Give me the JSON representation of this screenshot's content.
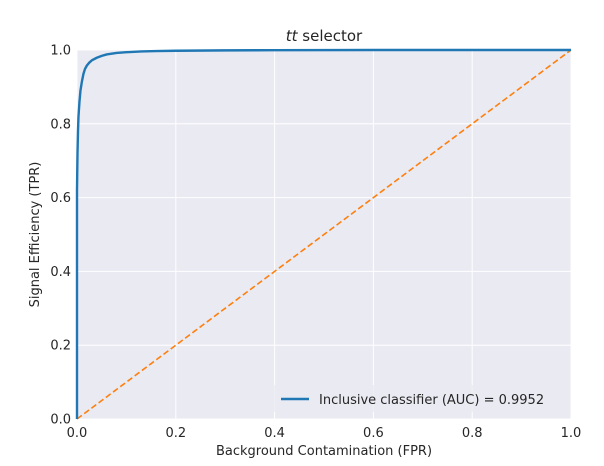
{
  "chart_data": {
    "type": "line",
    "title_italic": "tt",
    "title_rest": " selector",
    "xlabel": "Background Contamination (FPR)",
    "ylabel": "Signal Efficiency (TPR)",
    "xlim": [
      0.0,
      1.0
    ],
    "ylim": [
      0.0,
      1.0
    ],
    "xticks": [
      "0.0",
      "0.2",
      "0.4",
      "0.6",
      "0.8",
      "1.0"
    ],
    "yticks": [
      "0.0",
      "0.2",
      "0.4",
      "0.6",
      "0.8",
      "1.0"
    ],
    "grid": true,
    "legend_position": "lower-right",
    "series": [
      {
        "name": "Inclusive classifier (AUC) = 0.9952",
        "color": "#1f77b4",
        "style": "solid",
        "x": [
          0.0,
          0.0,
          0.001,
          0.002,
          0.003,
          0.005,
          0.007,
          0.01,
          0.013,
          0.016,
          0.02,
          0.025,
          0.03,
          0.04,
          0.05,
          0.06,
          0.08,
          0.1,
          0.13,
          0.16,
          0.2,
          0.3,
          0.4,
          0.6,
          0.8,
          1.0
        ],
        "y": [
          0.0,
          0.62,
          0.72,
          0.78,
          0.82,
          0.86,
          0.89,
          0.915,
          0.935,
          0.948,
          0.958,
          0.966,
          0.972,
          0.979,
          0.984,
          0.988,
          0.992,
          0.994,
          0.996,
          0.997,
          0.998,
          0.999,
          0.9995,
          1.0,
          1.0,
          1.0
        ]
      },
      {
        "name": "",
        "color": "#ff7f0e",
        "style": "dashed",
        "x": [
          0.0,
          1.0
        ],
        "y": [
          0.0,
          1.0
        ]
      }
    ]
  }
}
